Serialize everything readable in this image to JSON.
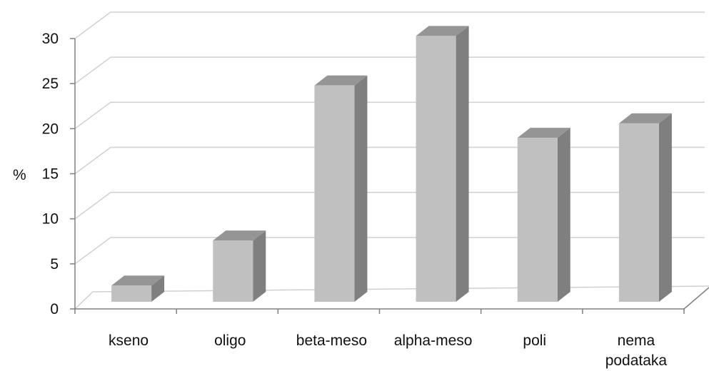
{
  "chart_data": {
    "type": "bar",
    "style": "3d-column",
    "categories": [
      "kseno",
      "oligo",
      "beta-meso",
      "alpha-meso",
      "poli",
      "nema podataka"
    ],
    "values": [
      1.8,
      6.8,
      24.0,
      29.5,
      18.2,
      19.8
    ],
    "ylabel": "%",
    "xlabel": "",
    "title": "",
    "ylim": [
      0,
      30
    ],
    "yticks": [
      0,
      5,
      10,
      15,
      20,
      25,
      30
    ],
    "grid": true,
    "legend": "none",
    "colors": {
      "bar_front": "#c0c0c0",
      "bar_side": "#7f7f7f",
      "bar_top": "#959595",
      "gridline": "#d0d0d0",
      "axis": "#808080"
    }
  }
}
